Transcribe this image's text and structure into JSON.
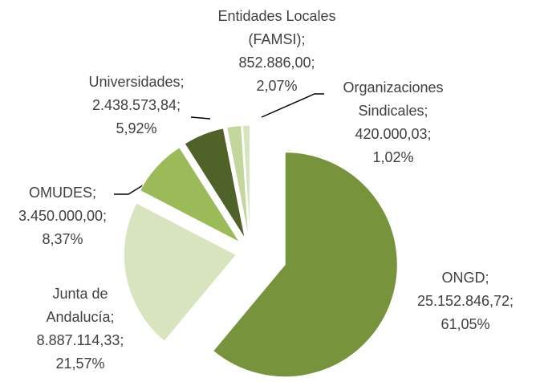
{
  "chart_data": {
    "type": "pie",
    "categories": [
      "ONGD;",
      "Junta de Andalucía;",
      "OMUDES;",
      "Universidades;",
      "Entidades Locales (FAMSI);",
      "Organizaciones Sindicales;"
    ],
    "values": [
      25152846.72,
      8887114.33,
      3450000.0,
      2438573.84,
      852886.0,
      420000.03
    ],
    "value_labels": [
      "25.152.846,72;",
      "8.887.114,33;",
      "3.450.000,00;",
      "2.438.573,84;",
      "852.886,00;",
      "420.000,03;"
    ],
    "percentages": [
      61.05,
      21.57,
      8.37,
      5.92,
      2.07,
      1.02
    ],
    "percentage_labels": [
      "61,05%",
      "21,57%",
      "8,37%",
      "5,92%",
      "2,07%",
      "1,02%"
    ],
    "colors": [
      "#77933c",
      "#d7e4bd",
      "#9bbb59",
      "#4f6228",
      "#c3d69b",
      "#d7e4bd"
    ]
  }
}
